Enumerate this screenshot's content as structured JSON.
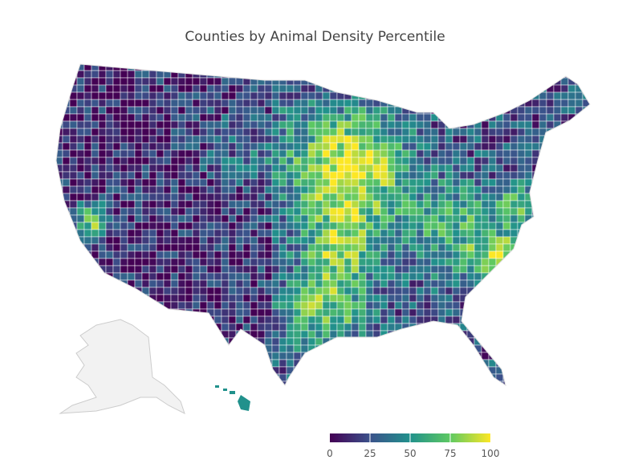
{
  "chart_data": {
    "type": "choropleth",
    "title": "Counties by Animal Density Percentile",
    "scope": "USA counties",
    "colorscale": "viridis",
    "colors": [
      "#440154",
      "#3b528b",
      "#21918c",
      "#5ec962",
      "#fde725"
    ],
    "missing_color": "#f2f2f2",
    "colorbar": {
      "range": [
        0,
        100
      ],
      "ticks": [
        0,
        25,
        50,
        75,
        100
      ],
      "orientation": "horizontal",
      "placement": "bottom-right"
    }
  }
}
